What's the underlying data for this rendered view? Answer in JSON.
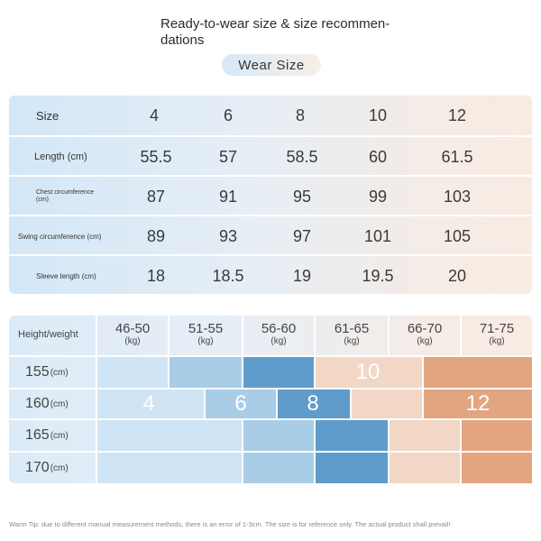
{
  "title": "Ready-to-wear size & size recommen-\ndations",
  "title_lines": [
    "Ready-to-wear size & size recommen-",
    "dations"
  ],
  "badge": "Wear  Size",
  "size_table": {
    "header_label": "Size",
    "sizes": [
      "4",
      "6",
      "8",
      "10",
      "12"
    ],
    "rows": [
      {
        "label": "Length (cm)",
        "values": [
          "55.5",
          "57",
          "58.5",
          "60",
          "61.5"
        ]
      },
      {
        "label": "Chest circumference (cm)",
        "values": [
          "87",
          "91",
          "95",
          "99",
          "103"
        ]
      },
      {
        "label": "Swing circumference (cm)",
        "values": [
          "89",
          "93",
          "97",
          "101",
          "105"
        ]
      },
      {
        "label": "Sleeve length (cm)",
        "values": [
          "18",
          "18.5",
          "19",
          "19.5",
          "20"
        ]
      }
    ]
  },
  "hw_table": {
    "corner_label": "Height/weight",
    "weight_columns": [
      {
        "range": "46-50",
        "unit": "(kg)"
      },
      {
        "range": "51-55",
        "unit": "(kg)"
      },
      {
        "range": "56-60",
        "unit": "(kg)"
      },
      {
        "range": "61-65",
        "unit": "(kg)"
      },
      {
        "range": "66-70",
        "unit": "(kg)"
      },
      {
        "range": "71-75",
        "unit": "(kg)"
      }
    ],
    "height_rows": [
      {
        "value": "155",
        "unit": "(cm)"
      },
      {
        "value": "160",
        "unit": "(cm)"
      },
      {
        "value": "165",
        "unit": "(cm)"
      },
      {
        "value": "170",
        "unit": "(cm)"
      }
    ],
    "size_labels": [
      "4",
      "6",
      "8",
      "10",
      "12"
    ],
    "colors": {
      "pale_blue": "#cfe4f5",
      "light_blue": "#a9cde7",
      "mid_blue": "#8cbcdf",
      "strong_blue": "#5f9ccb",
      "pale_peach": "#f2d7c6",
      "peach": "#ebc3a7",
      "orange": "#e2a57f"
    }
  },
  "tip": "Warm Tip: due to different manual measurement methods, there is an error of 1-3cm. The size is for reference only. The actual product shall prevail!"
}
